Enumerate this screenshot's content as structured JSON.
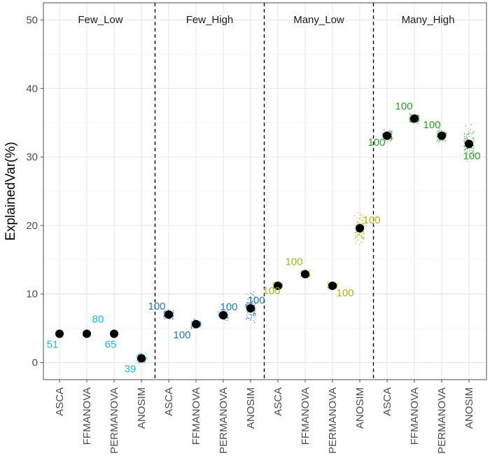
{
  "chart_data": {
    "type": "scatter",
    "title": "",
    "xlabel": "",
    "ylabel": "ExplainedVar(%)",
    "ylim": [
      -2.5,
      52.5
    ],
    "yticks": [
      0,
      10,
      20,
      30,
      40,
      50
    ],
    "categories": [
      "ASCA",
      "FFMANOVA",
      "PERMANOVA",
      "ANOSIM"
    ],
    "facets": [
      {
        "label": "Few_Low",
        "color": "#17becf",
        "groups": [
          {
            "method": "ASCA",
            "mean": 4.2,
            "count": "51",
            "spread": 0.0
          },
          {
            "method": "FFMANOVA",
            "mean": 4.2,
            "count": "80",
            "spread": 0.0
          },
          {
            "method": "PERMANOVA",
            "mean": 4.2,
            "count": "65",
            "spread": 0.0
          },
          {
            "method": "ANOSIM",
            "mean": 0.6,
            "count": "39",
            "spread": 1.2
          }
        ]
      },
      {
        "label": "Few_High",
        "color": "#1f77b4",
        "groups": [
          {
            "method": "ASCA",
            "mean": 7.0,
            "count": "100",
            "spread": 1.0
          },
          {
            "method": "FFMANOVA",
            "mean": 5.6,
            "count": "100",
            "spread": 1.0
          },
          {
            "method": "PERMANOVA",
            "mean": 6.9,
            "count": "100",
            "spread": 1.0
          },
          {
            "method": "ANOSIM",
            "mean": 7.9,
            "count": "100",
            "spread": 3.5
          }
        ]
      },
      {
        "label": "Many_Low",
        "color": "#a4b91a",
        "groups": [
          {
            "method": "ASCA",
            "mean": 11.2,
            "count": "100",
            "spread": 0.8
          },
          {
            "method": "FFMANOVA",
            "mean": 12.9,
            "count": "100",
            "spread": 0.8
          },
          {
            "method": "PERMANOVA",
            "mean": 11.2,
            "count": "100",
            "spread": 0.8
          },
          {
            "method": "ANOSIM",
            "mean": 19.6,
            "count": "100",
            "spread": 3.5
          }
        ]
      },
      {
        "label": "Many_High",
        "color": "#2ca02c",
        "groups": [
          {
            "method": "ASCA",
            "mean": 33.1,
            "count": "100",
            "spread": 1.5
          },
          {
            "method": "FFMANOVA",
            "mean": 35.6,
            "count": "100",
            "spread": 1.2
          },
          {
            "method": "PERMANOVA",
            "mean": 33.1,
            "count": "100",
            "spread": 1.2
          },
          {
            "method": "ANOSIM",
            "mean": 31.9,
            "count": "100",
            "spread": 3.5
          }
        ]
      }
    ]
  }
}
